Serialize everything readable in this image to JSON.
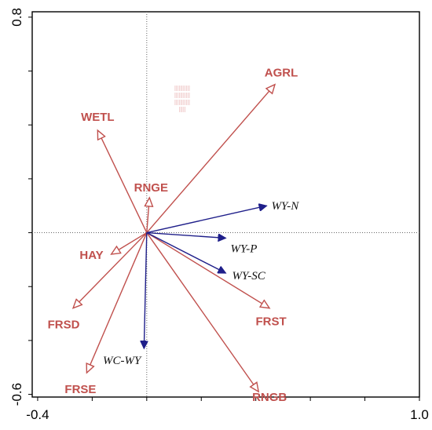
{
  "chart_data": {
    "type": "biplot",
    "title": "",
    "xlabel": "",
    "ylabel": "",
    "xlim": [
      -0.42,
      1.0
    ],
    "ylim": [
      -0.61,
      0.82
    ],
    "x_tick_labels": [
      {
        "value": -0.4,
        "label": "-0.4"
      },
      {
        "value": 1.0,
        "label": "1.0"
      }
    ],
    "y_tick_labels": [
      {
        "value": 0.8,
        "label": "0.8"
      },
      {
        "value": -0.6,
        "label": "-0.6"
      }
    ],
    "x_minor_ticks": [
      -0.4,
      -0.2,
      0.0,
      0.2,
      0.4,
      0.6,
      0.8,
      1.0
    ],
    "y_minor_ticks": [
      -0.6,
      -0.4,
      -0.2,
      0.0,
      0.2,
      0.4,
      0.6,
      0.8
    ],
    "reference_lines": {
      "x": 0.0,
      "y": 0.0,
      "style": "dotted"
    },
    "colors": {
      "environment": "#c0504d",
      "species": "#1f1f8a",
      "axis": "#000000"
    },
    "series": [
      {
        "group": "environment",
        "arrow_style": "open",
        "vectors": [
          {
            "label": "AGRL",
            "x": 0.47,
            "y": 0.55
          },
          {
            "label": "WETL",
            "x": -0.18,
            "y": 0.38
          },
          {
            "label": "RNGE",
            "x": 0.01,
            "y": 0.13
          },
          {
            "label": "HAY",
            "x": -0.13,
            "y": -0.08
          },
          {
            "label": "FRSD",
            "x": -0.27,
            "y": -0.28
          },
          {
            "label": "FRSE",
            "x": -0.22,
            "y": -0.52
          },
          {
            "label": "FRST",
            "x": 0.45,
            "y": -0.28
          },
          {
            "label": "RNGB",
            "x": 0.41,
            "y": -0.59
          }
        ]
      },
      {
        "group": "species",
        "arrow_style": "filled",
        "vectors": [
          {
            "label": "WY-N",
            "x": 0.44,
            "y": 0.1
          },
          {
            "label": "WY-P",
            "x": 0.29,
            "y": -0.02
          },
          {
            "label": "WY-SC",
            "x": 0.29,
            "y": -0.15
          },
          {
            "label": "WC-WY",
            "x": -0.01,
            "y": -0.43
          }
        ]
      }
    ],
    "faint_marks": [
      "|||||||||||",
      "|||||||||||",
      "|||||||||||",
      "|||||"
    ]
  }
}
